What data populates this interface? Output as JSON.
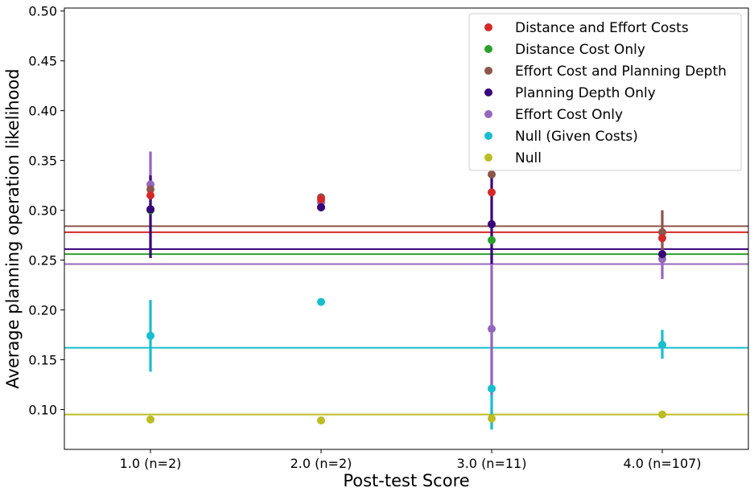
{
  "chart_data": {
    "type": "scatter",
    "title": "",
    "xlabel": "Post-test Score",
    "ylabel": "Average planning operation likelihood",
    "categories": [
      "1.0 (n=2)",
      "2.0 (n=2)",
      "3.0 (n=11)",
      "4.0 (n=107)"
    ],
    "ylim": [
      0.06,
      0.503
    ],
    "yticks": [
      "0.10",
      "0.15",
      "0.20",
      "0.25",
      "0.30",
      "0.35",
      "0.40",
      "0.45",
      "0.50"
    ],
    "grid": false,
    "legend_position": "top-right",
    "series": [
      {
        "name": "Null",
        "color": "#bcbd22",
        "values": [
          0.09,
          0.089,
          0.091,
          0.095
        ],
        "err_low": [
          null,
          null,
          0.08,
          null
        ],
        "err_high": [
          null,
          null,
          0.1,
          null
        ],
        "overall": 0.095
      },
      {
        "name": "Null (Given Costs)",
        "color": "#17becf",
        "values": [
          0.174,
          0.208,
          0.121,
          0.165
        ],
        "err_low": [
          0.138,
          null,
          0.08,
          0.151
        ],
        "err_high": [
          0.21,
          null,
          0.164,
          0.18
        ],
        "overall": 0.162
      },
      {
        "name": "Effort Cost Only",
        "color": "#9467bd",
        "values": [
          0.326,
          0.308,
          0.181,
          0.251
        ],
        "err_low": [
          0.295,
          0.302,
          0.115,
          0.231
        ],
        "err_high": [
          0.359,
          0.312,
          0.245,
          0.27
        ],
        "overall": 0.246
      },
      {
        "name": "Distance Cost Only",
        "color": "#2ca02c",
        "values": [
          0.3,
          0.303,
          0.27,
          0.256
        ],
        "err_low": [
          null,
          null,
          null,
          null
        ],
        "err_high": [
          null,
          null,
          null,
          null
        ],
        "overall": 0.256
      },
      {
        "name": "Planning Depth Only",
        "color": "#38007a",
        "values": [
          0.301,
          0.303,
          0.286,
          0.256
        ],
        "err_low": [
          0.252,
          0.3,
          0.246,
          0.25
        ],
        "err_high": [
          0.335,
          0.306,
          0.338,
          0.262
        ],
        "overall": 0.261
      },
      {
        "name": "Effort Cost and Planning Depth",
        "color": "#8c564b",
        "values": [
          0.321,
          0.313,
          0.336,
          0.278
        ],
        "err_low": [
          null,
          0.308,
          null,
          0.25
        ],
        "err_high": [
          null,
          0.317,
          null,
          0.3
        ],
        "overall": 0.284
      },
      {
        "name": "Distance and Effort Costs",
        "color": "#d62728",
        "values": [
          0.315,
          0.311,
          0.318,
          0.272
        ],
        "err_low": [
          null,
          null,
          null,
          null
        ],
        "err_high": [
          null,
          null,
          null,
          null
        ],
        "overall": 0.278
      }
    ],
    "legend_order": [
      "Distance and Effort Costs",
      "Distance Cost Only",
      "Effort Cost and Planning Depth",
      "Planning Depth Only",
      "Effort Cost Only",
      "Null (Given Costs)",
      "Null"
    ]
  }
}
